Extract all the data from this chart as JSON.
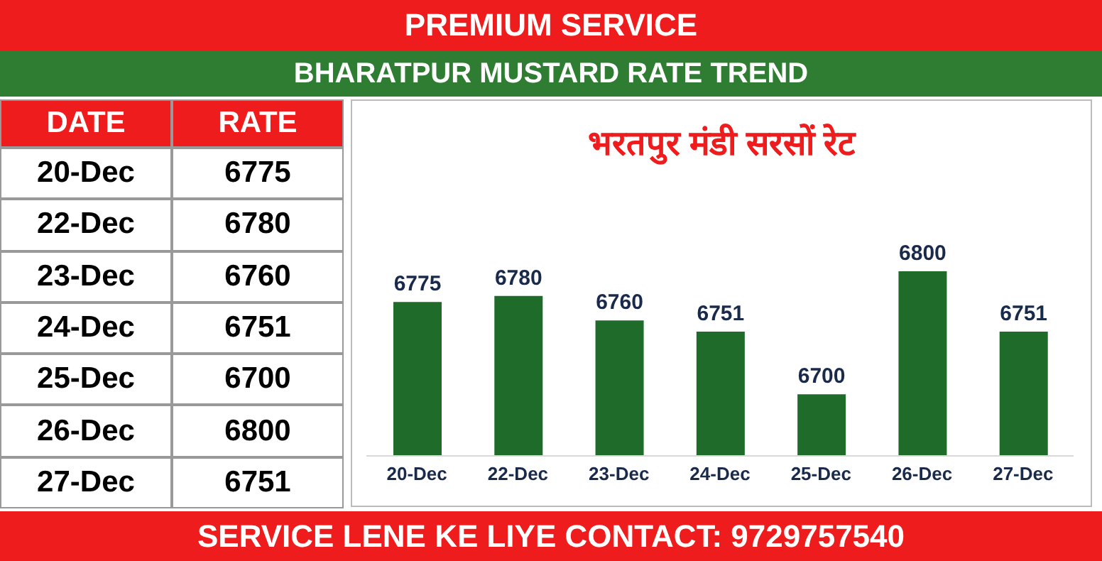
{
  "chart_data": [
    {
      "type": "other",
      "title": "PREMIUM SERVICE",
      "subtitle": "BHARATPUR MUSTARD RATE TREND",
      "annotations": [
        "DATE",
        "RATE"
      ],
      "categories": [
        "20-Dec",
        "22-Dec",
        "23-Dec",
        "24-Dec",
        "25-Dec",
        "26-Dec",
        "27-Dec"
      ],
      "values": [
        6775,
        6780,
        6760,
        6751,
        6700,
        6800,
        6751
      ],
      "data_labels": true
    },
    {
      "type": "bar",
      "title": "भरतपुर मंडी सरसों रेट",
      "annotations": [
        "SERVICE LENE KE LIYE CONTACT: 9729757540"
      ],
      "categories": [
        "20-Dec",
        "22-Dec",
        "23-Dec",
        "24-Dec",
        "25-Dec",
        "26-Dec",
        "27-Dec"
      ],
      "values": [
        6775,
        6780,
        6760,
        6751,
        6700,
        6800,
        6751
      ],
      "color": "#1e6b2a",
      "ylim": [
        6650,
        6800
      ],
      "tick_labels": "x",
      "data_labels": true,
      "grid": false,
      "legend": false
    }
  ]
}
